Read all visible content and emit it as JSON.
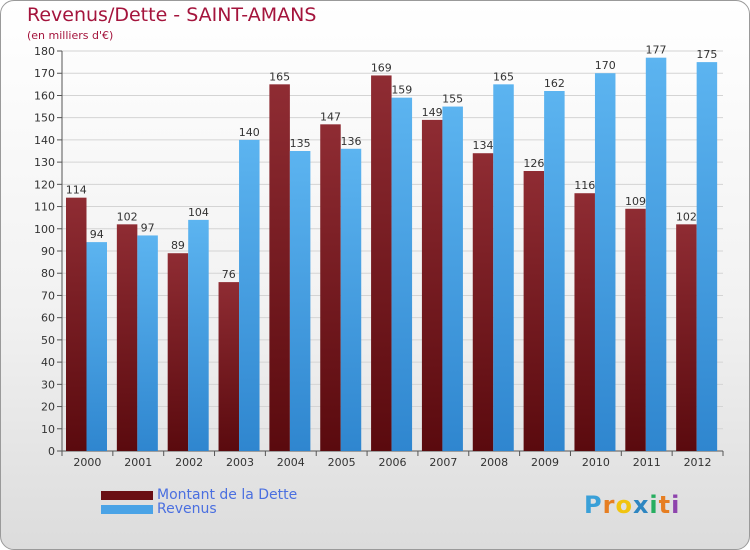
{
  "header": {
    "title": "Revenus/Dette - SAINT-AMANS",
    "subtitle": "(en milliers d'€)"
  },
  "legend": {
    "items": [
      {
        "label": "Montant de la Dette",
        "color": "#7a1a1f"
      },
      {
        "label": "Revenus",
        "color": "#4aa3e6"
      }
    ]
  },
  "logo": {
    "letters": [
      "P",
      "r",
      "o",
      "x",
      "i",
      "t",
      "i"
    ],
    "colors": [
      "#3aa0d8",
      "#e67e22",
      "#f1c40f",
      "#2e86c1",
      "#27ae60",
      "#e67e22",
      "#8e44ad"
    ]
  },
  "chart_data": {
    "type": "bar",
    "title": "Revenus/Dette - SAINT-AMANS",
    "subtitle": "(en milliers d'€)",
    "categories": [
      "2000",
      "2001",
      "2002",
      "2003",
      "2004",
      "2005",
      "2006",
      "2007",
      "2008",
      "2009",
      "2010",
      "2011",
      "2012"
    ],
    "series": [
      {
        "name": "Montant de la Dette",
        "color": "#7a1a1f",
        "values": [
          114,
          102,
          89,
          76,
          165,
          147,
          169,
          149,
          134,
          126,
          116,
          109,
          102
        ]
      },
      {
        "name": "Revenus",
        "color": "#4aa3e6",
        "values": [
          94,
          97,
          104,
          140,
          135,
          136,
          159,
          155,
          165,
          162,
          170,
          177,
          175
        ]
      }
    ],
    "ylim": [
      0,
      180
    ],
    "yticks": [
      0,
      10,
      20,
      30,
      40,
      50,
      60,
      70,
      80,
      90,
      100,
      110,
      120,
      130,
      140,
      150,
      160,
      170,
      180
    ],
    "grid": true,
    "legend_position": "bottom-left"
  }
}
